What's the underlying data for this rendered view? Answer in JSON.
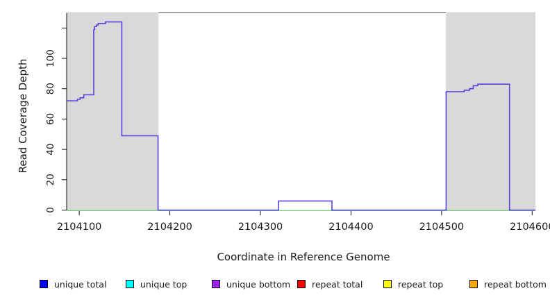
{
  "chart_data": {
    "type": "line",
    "title": "",
    "xlabel": "Coordinate in Reference Genome",
    "ylabel": "Read Coverage Depth",
    "xlim": [
      2104086.5,
      2104603.6
    ],
    "ylim": [
      0,
      130
    ],
    "grid": false,
    "x_ticks": [
      2104100,
      2104200,
      2104300,
      2104400,
      2104500,
      2104600
    ],
    "x_tick_labels": [
      "2104100",
      "2104200",
      "2104300",
      "2104400",
      "2104500",
      "2104600"
    ],
    "y_ticks": [
      0,
      20,
      40,
      60,
      80,
      100,
      120
    ],
    "y_tick_labels": [
      "0",
      "20",
      "40",
      "60",
      "80",
      "100",
      ""
    ],
    "shade_color": "#d9d9d9",
    "shaded_regions": [
      [
        2104086.5,
        2104187.5
      ],
      [
        2104504.8,
        2104603.6
      ]
    ],
    "series": [
      {
        "name": "zero-baseline",
        "color": "#7cc87c",
        "type": "line",
        "points": [
          [
            2104086.5,
            0
          ],
          [
            2104603.6,
            0
          ]
        ]
      },
      {
        "name": "coverage-depth",
        "color": "#5b3fde",
        "type": "step",
        "points": [
          [
            2104086.5,
            72
          ],
          [
            2104098,
            72
          ],
          [
            2104098,
            73
          ],
          [
            2104101,
            73
          ],
          [
            2104101,
            74
          ],
          [
            2104105,
            74
          ],
          [
            2104105,
            76
          ],
          [
            2104116,
            76
          ],
          [
            2104116,
            119
          ],
          [
            2104117,
            119
          ],
          [
            2104117,
            121
          ],
          [
            2104119,
            121
          ],
          [
            2104119,
            122
          ],
          [
            2104121,
            122
          ],
          [
            2104121,
            123
          ],
          [
            2104129,
            123
          ],
          [
            2104129,
            124
          ],
          [
            2104147,
            124
          ],
          [
            2104147,
            49
          ],
          [
            2104187,
            49
          ],
          [
            2104187,
            0
          ],
          [
            2104320,
            0
          ],
          [
            2104320,
            6
          ],
          [
            2104379,
            6
          ],
          [
            2104379,
            0
          ],
          [
            2104505,
            0
          ],
          [
            2104505,
            78
          ],
          [
            2104525,
            78
          ],
          [
            2104525,
            79
          ],
          [
            2104531,
            79
          ],
          [
            2104531,
            80
          ],
          [
            2104535,
            80
          ],
          [
            2104535,
            82
          ],
          [
            2104540,
            82
          ],
          [
            2104540,
            83
          ],
          [
            2104575,
            83
          ],
          [
            2104575,
            0
          ],
          [
            2104603.6,
            0
          ]
        ]
      }
    ],
    "legend": {
      "position": "bottom",
      "entries": [
        {
          "key": "unique-total",
          "label": "unique total",
          "color": "#0000ff"
        },
        {
          "key": "unique-top",
          "label": "unique top",
          "color": "#00ffff"
        },
        {
          "key": "unique-bottom",
          "label": "unique bottom",
          "color": "#a020f0"
        },
        {
          "key": "repeat-total",
          "label": "repeat total",
          "color": "#ff0000"
        },
        {
          "key": "repeat-top",
          "label": "repeat top",
          "color": "#ffff00"
        },
        {
          "key": "repeat-bottom",
          "label": "repeat bottom",
          "color": "#ffa500"
        }
      ]
    }
  }
}
